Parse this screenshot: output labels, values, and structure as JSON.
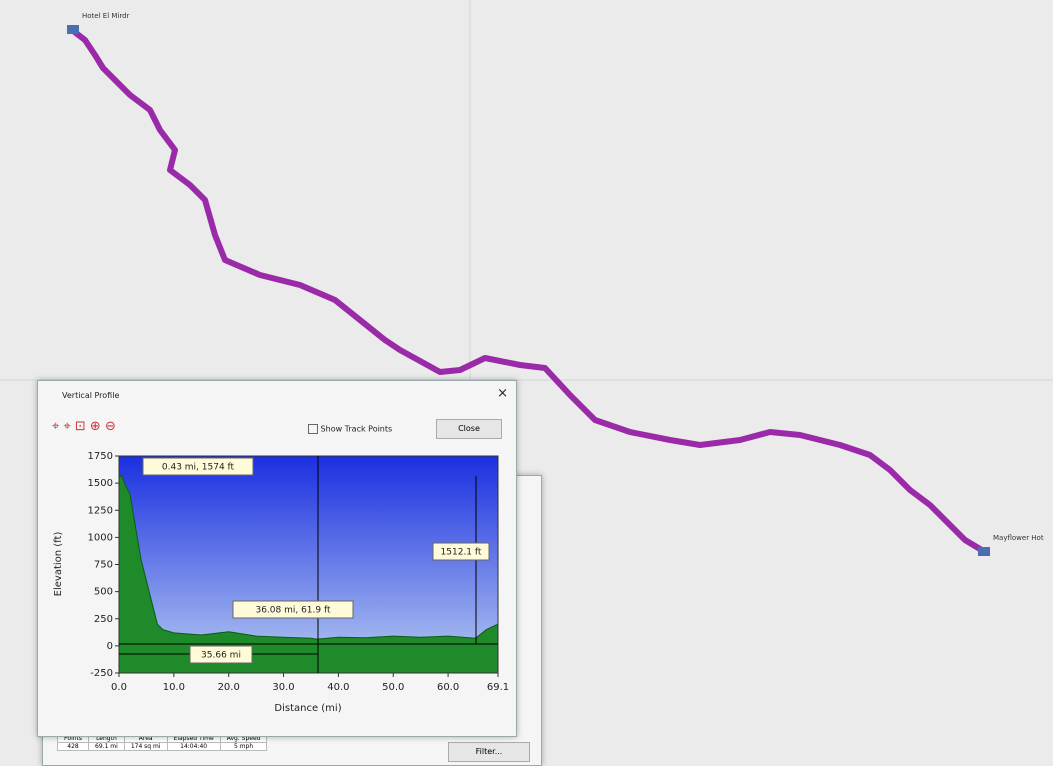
{
  "map": {
    "start_label": "Hotel El Mirdr",
    "end_label": "Mayflower Hot"
  },
  "window": {
    "title": "Vertical Profile",
    "show_track_points": "Show Track Points",
    "close": "Close"
  },
  "profile": {
    "type": "area",
    "y_label": "Elevation (ft)",
    "x_label": "Distance (mi)",
    "x": [
      0,
      0.43,
      1,
      2,
      3,
      4,
      5,
      6,
      7,
      8,
      10,
      15,
      20,
      25,
      30,
      35,
      36.08,
      40,
      45,
      50,
      55,
      60,
      65,
      67,
      69.1
    ],
    "values": [
      1550,
      1574,
      1500,
      1400,
      1100,
      800,
      600,
      400,
      200,
      150,
      120,
      100,
      130,
      90,
      80,
      70,
      61.9,
      80,
      75,
      90,
      80,
      90,
      70,
      150,
      200
    ],
    "xlim": [
      0,
      69.1
    ],
    "ylim": [
      -250,
      1750
    ],
    "xticks": [
      {
        "value": 0,
        "label": "0.0"
      },
      {
        "value": 10,
        "label": "10.0"
      },
      {
        "value": 20,
        "label": "20.0"
      },
      {
        "value": 30,
        "label": "30.0"
      },
      {
        "value": 40,
        "label": "40.0"
      },
      {
        "value": 50,
        "label": "50.0"
      },
      {
        "value": 60,
        "label": "60.0"
      },
      69.1
    ],
    "yticks": [
      -250,
      0,
      250,
      500,
      750,
      1000,
      1250,
      1500,
      1750
    ],
    "annotations": [
      "0.43 mi, 1574 ft",
      "36.08 mi, 61.9 ft",
      "35.66 mi",
      "1512.1 ft"
    ]
  },
  "stats": {
    "headers": [
      "Points",
      "Length",
      "Area",
      "Elapsed Time",
      "Avg. Speed"
    ],
    "values": [
      "428",
      "69.1 mi",
      "174 sq mi",
      "14:04:40",
      "5 mph"
    ],
    "filter": "Filter..."
  }
}
